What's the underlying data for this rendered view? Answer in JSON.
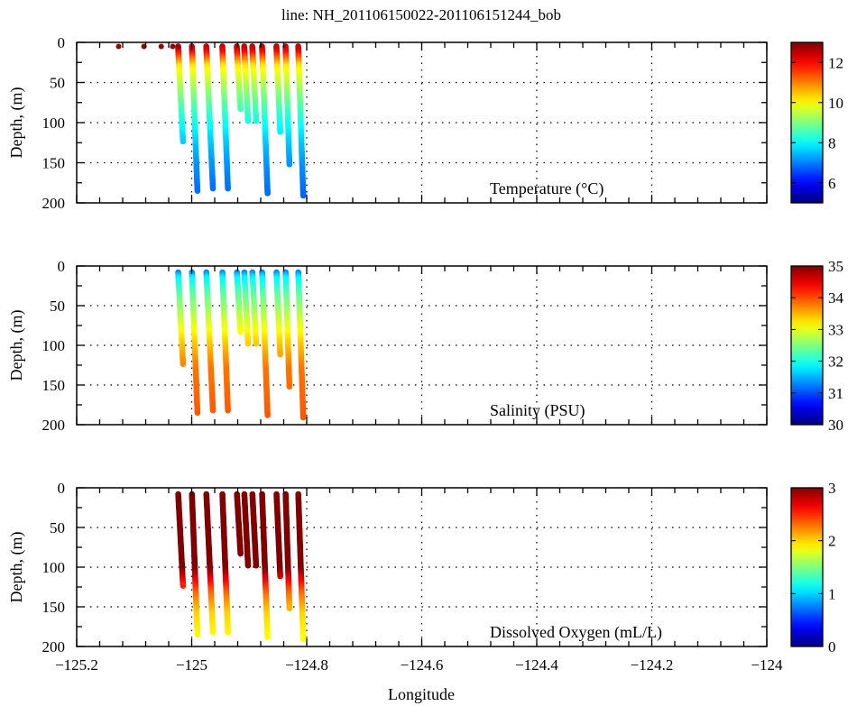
{
  "chart_data": [
    {
      "type": "scatter",
      "title": "line: NH_201106150022-201106151244_bob",
      "annotation": "Temperature (°C)",
      "ylabel": "Depth, (m)",
      "xlabel": "Longitude",
      "xlim": [
        -125.2,
        -124.0
      ],
      "ylim": [
        200,
        0
      ],
      "clim": [
        5,
        13
      ],
      "colorbar_ticks": [
        "6",
        "8",
        "10",
        "12"
      ],
      "colorbar_values": [
        6,
        8,
        10,
        12
      ],
      "surface_points_lon": [
        -125.127,
        -125.083,
        -125.053,
        -125.033,
        -125.023
      ],
      "surface_value": 12.8,
      "start_depth": 5,
      "profile": [
        [
          0,
          12.8
        ],
        [
          10,
          12.3
        ],
        [
          30,
          10.2
        ],
        [
          60,
          9.2
        ],
        [
          90,
          8.4
        ],
        [
          120,
          7.7
        ],
        [
          150,
          7.2
        ],
        [
          190,
          6.8
        ]
      ]
    },
    {
      "type": "scatter",
      "annotation": "Salinity (PSU)",
      "ylabel": "Depth, (m)",
      "xlim": [
        -125.2,
        -124.0
      ],
      "ylim": [
        200,
        0
      ],
      "clim": [
        30,
        35
      ],
      "colorbar_ticks": [
        "30",
        "31",
        "32",
        "33",
        "34",
        "35"
      ],
      "colorbar_values": [
        30,
        31,
        32,
        33,
        34,
        35
      ],
      "start_depth": 8,
      "profile": [
        [
          5,
          31.0
        ],
        [
          15,
          31.8
        ],
        [
          35,
          32.3
        ],
        [
          70,
          32.9
        ],
        [
          100,
          33.4
        ],
        [
          130,
          33.8
        ],
        [
          190,
          33.95
        ]
      ]
    },
    {
      "type": "scatter",
      "annotation": "Dissolved Oxygen (mL/L)",
      "ylabel": "Depth, (m)",
      "xlim": [
        -125.2,
        -124.0
      ],
      "ylim": [
        200,
        0
      ],
      "clim": [
        0,
        3
      ],
      "colorbar_ticks": [
        "0",
        "1",
        "2",
        "3"
      ],
      "colorbar_values": [
        0,
        1,
        2,
        3
      ],
      "start_depth": 8,
      "profile": [
        [
          0,
          3.3
        ],
        [
          95,
          3.2
        ],
        [
          115,
          2.7
        ],
        [
          135,
          2.3
        ],
        [
          160,
          2.0
        ],
        [
          195,
          1.85
        ]
      ]
    }
  ],
  "axes": {
    "x_ticks": [
      "−125.2",
      "−125",
      "−124.8",
      "−124.6",
      "−124.4",
      "−124.2",
      "−124"
    ],
    "x_tick_values": [
      -125.2,
      -125.0,
      -124.8,
      -124.6,
      -124.4,
      -124.2,
      -124.0
    ],
    "y_ticks": [
      "0",
      "50",
      "100",
      "150",
      "200"
    ],
    "y_tick_values": [
      0,
      50,
      100,
      150,
      200
    ]
  },
  "casts": [
    {
      "lon_top": -125.024,
      "lon_bottom": -125.015,
      "max_depth": 124
    },
    {
      "lon_top": -125.0,
      "lon_bottom": -124.99,
      "max_depth": 185
    },
    {
      "lon_top": -124.975,
      "lon_bottom": -124.963,
      "max_depth": 183
    },
    {
      "lon_top": -124.947,
      "lon_bottom": -124.937,
      "max_depth": 183
    },
    {
      "lon_top": -124.922,
      "lon_bottom": -124.915,
      "max_depth": 84
    },
    {
      "lon_top": -124.909,
      "lon_bottom": -124.902,
      "max_depth": 98
    },
    {
      "lon_top": -124.895,
      "lon_bottom": -124.888,
      "max_depth": 98
    },
    {
      "lon_top": -124.878,
      "lon_bottom": -124.868,
      "max_depth": 189
    },
    {
      "lon_top": -124.853,
      "lon_bottom": -124.846,
      "max_depth": 112
    },
    {
      "lon_top": -124.837,
      "lon_bottom": -124.83,
      "max_depth": 153
    },
    {
      "lon_top": -124.815,
      "lon_bottom": -124.806,
      "max_depth": 191
    }
  ]
}
